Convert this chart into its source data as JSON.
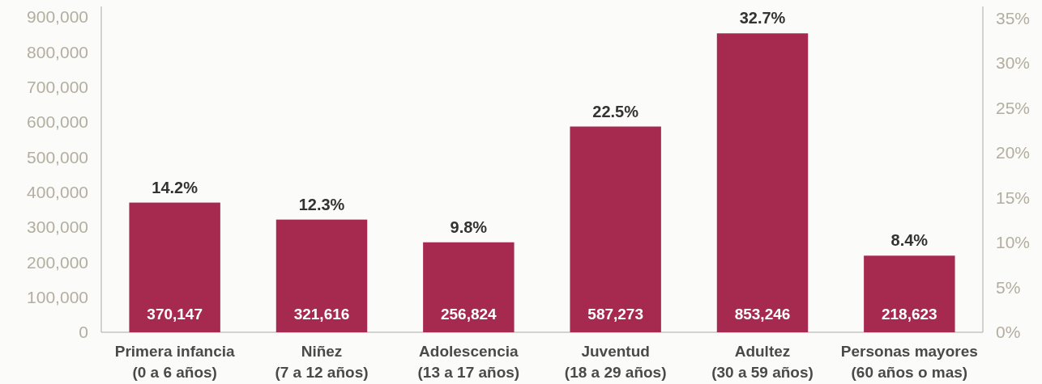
{
  "chart_data": {
    "type": "bar",
    "categories": [
      "Primera infancia\n(0 a 6 años)",
      "Niñez\n(7 a 12 años)",
      "Adolescencia\n(13 a 17 años)",
      "Juventud\n(18 a 29 años)",
      "Adultez\n(30 a 59 años)",
      "Personas mayores\n(60 años o  mas)"
    ],
    "values": [
      370147,
      321616,
      256824,
      587273,
      853246,
      218623
    ],
    "color": "#a6294f",
    "value_labels": [
      "370,147",
      "321,616",
      "256,824",
      "587,273",
      "853,246",
      "218,623"
    ],
    "ylim": [
      0,
      930000
    ],
    "yticks": [
      {
        "value": 0,
        "label": "0"
      },
      {
        "value": 100000,
        "label": "100,000"
      },
      {
        "value": 200000,
        "label": "200,000"
      },
      {
        "value": 300000,
        "label": "300,000"
      },
      {
        "value": 400000,
        "label": "400,000"
      },
      {
        "value": 500000,
        "label": "500,000"
      },
      {
        "value": 600000,
        "label": "600,000"
      },
      {
        "value": 700000,
        "label": "700,000"
      },
      {
        "value": 800000,
        "label": "800,000"
      },
      {
        "value": 900000,
        "label": "900,000"
      }
    ],
    "y2lim": [
      0,
      36.3
    ],
    "y2ticks": [
      {
        "value": 0,
        "label": "0%"
      },
      {
        "value": 5,
        "label": "5%"
      },
      {
        "value": 10,
        "label": "10%"
      },
      {
        "value": 15,
        "label": "15%"
      },
      {
        "value": 20,
        "label": "20%"
      },
      {
        "value": 25,
        "label": "25%"
      },
      {
        "value": 30,
        "label": "30%"
      },
      {
        "value": 35,
        "label": "35%"
      }
    ],
    "annotations": [
      {
        "text": "14.2%",
        "x": "Primera infancia\n(0 a 6 años)",
        "y": 370147
      },
      {
        "text": "12.3%",
        "x": "Niñez\n(7 a 12 años)",
        "y": 321616
      },
      {
        "text": "9.8%",
        "x": "Adolescencia\n(13 a 17 años)",
        "y": 256824
      },
      {
        "text": "22.5%",
        "x": "Juventud\n(18 a 29 años)",
        "y": 587273
      },
      {
        "text": "32.7%",
        "x": "Adultez\n(30 a 59 años)",
        "y": 853246
      },
      {
        "text": "8.4%",
        "x": "Personas mayores\n(60 años o  mas)",
        "y": 218623
      }
    ]
  }
}
